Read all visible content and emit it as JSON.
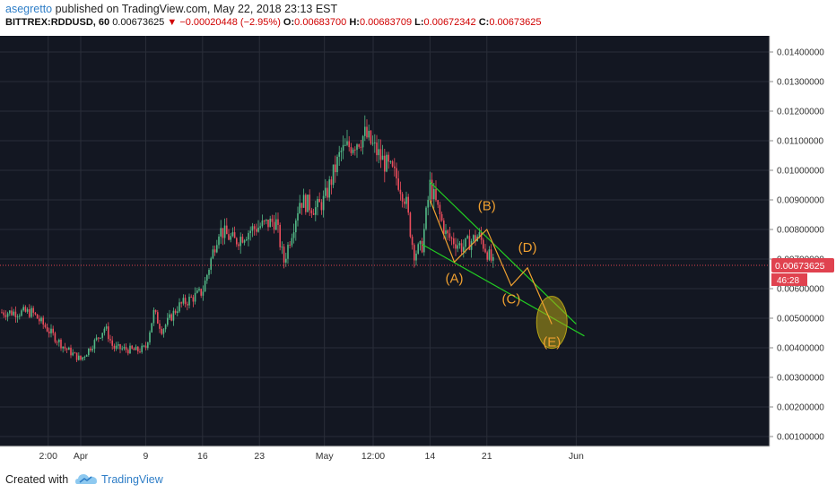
{
  "header": {
    "author": "asegretto",
    "published": "published on TradingView.com, May 22, 2018 23:13 EST",
    "symbol": "BITTREX:RDDUSD, 60",
    "last": "0.00673625",
    "change": "▼ −0.00020448 (−2.95%)",
    "o_label": "O:",
    "o": "0.00683700",
    "h_label": "H:",
    "h": "0.00683709",
    "l_label": "L:",
    "l": "0.00672342",
    "c_label": "C:",
    "c": "0.00673625"
  },
  "footer": {
    "created": "Created with",
    "brand": "TradingView"
  },
  "colors": {
    "background": "#131722",
    "up": "#53b987",
    "down": "#eb4d5c",
    "trendline": "#22cc22",
    "wave": "#f0a030",
    "ellipse": "#b5a216",
    "last_price": "#e0424f"
  },
  "chart_data": {
    "type": "candlestick",
    "ylim": [
      0.0,
      0.015
    ],
    "y_ticks": [
      "0.01400000",
      "0.01300000",
      "0.01200000",
      "0.01100000",
      "0.01000000",
      "0.00900000",
      "0.00800000",
      "0.00700000",
      "0.00600000",
      "0.00500000",
      "0.00400000",
      "0.00300000",
      "0.00200000",
      "0.00100000"
    ],
    "x_ticks": [
      "2:00",
      "Apr",
      "9",
      "16",
      "23",
      "May",
      "12:00",
      "14",
      "21",
      "Jun"
    ],
    "last_price_label": "0.00673625",
    "countdown_label": "46:28",
    "price_path": [
      [
        "Mar 26",
        0.0052
      ],
      [
        "Mar 28",
        0.0046
      ],
      [
        "Mar 30",
        0.004
      ],
      [
        "Apr 1",
        0.0036
      ],
      [
        "Apr 3",
        0.0043
      ],
      [
        "Apr 4",
        0.0047
      ],
      [
        "Apr 5",
        0.004
      ],
      [
        "Apr 8",
        0.0039
      ],
      [
        "Apr 9",
        0.004
      ],
      [
        "Apr 10",
        0.0052
      ],
      [
        "Apr 11",
        0.0046
      ],
      [
        "Apr 13",
        0.0054
      ],
      [
        "Apr 16",
        0.0059
      ],
      [
        "Apr 18",
        0.008
      ],
      [
        "Apr 20",
        0.0076
      ],
      [
        "Apr 22",
        0.008
      ],
      [
        "Apr 25",
        0.0083
      ],
      [
        "Apr 26",
        0.0069
      ],
      [
        "Apr 28",
        0.009
      ],
      [
        "Apr 30",
        0.0087
      ],
      [
        "May 1",
        0.009
      ],
      [
        "May 3",
        0.0106
      ],
      [
        "May 6",
        0.0112
      ],
      [
        "May 8",
        0.0104
      ],
      [
        "May 10",
        0.0097
      ],
      [
        "May 11",
        0.009
      ],
      [
        "May 12",
        0.0072
      ],
      [
        "May 13",
        0.0074
      ],
      [
        "May 14",
        0.0095
      ],
      [
        "May 16",
        0.0078
      ],
      [
        "May 18",
        0.0074
      ],
      [
        "May 20",
        0.0078
      ],
      [
        "May 22",
        0.0067
      ]
    ],
    "trendlines": [
      {
        "name": "upper",
        "from": [
          "May 14",
          0.0096
        ],
        "to": [
          "Jun 1",
          0.0048
        ]
      },
      {
        "name": "lower",
        "from": [
          "May 13",
          0.0075
        ],
        "to": [
          "Jun 2",
          0.0044
        ]
      }
    ],
    "wave_path": [
      [
        "May 14",
        0.009
      ],
      [
        "May 17",
        0.0069
      ],
      [
        "May 21",
        0.008
      ],
      [
        "May 24",
        0.0061
      ],
      [
        "May 26",
        0.0067
      ],
      [
        "May 29",
        0.0048
      ]
    ],
    "wave_labels": [
      {
        "text": "(A)",
        "x": "May 17",
        "y": 0.0062
      },
      {
        "text": "(B)",
        "x": "May 21",
        "y": 0.00865
      },
      {
        "text": "(C)",
        "x": "May 24",
        "y": 0.0055
      },
      {
        "text": "(D)",
        "x": "May 26",
        "y": 0.00725
      },
      {
        "text": "(E)",
        "x": "May 29",
        "y": 0.00405
      }
    ],
    "target_zone": {
      "x": "May 29",
      "y": 0.0048
    }
  }
}
